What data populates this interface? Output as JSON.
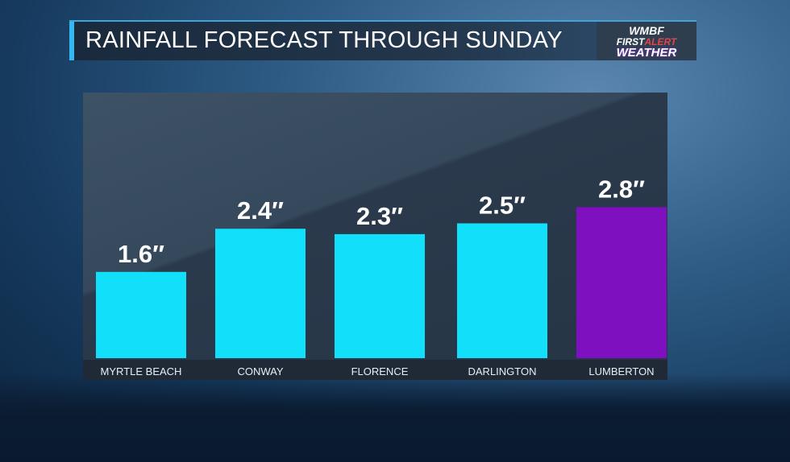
{
  "header": {
    "title": "RAINFALL FORECAST THROUGH SUNDAY",
    "logo": {
      "line1": "WMBF",
      "line2a": "FIRST",
      "line2b": "ALERT",
      "line3": "WEATHER"
    }
  },
  "colors": {
    "bar": "#12e0fb",
    "highlight_bar": "#7f10c0",
    "label_strip": "#1f2a36"
  },
  "chart_data": {
    "type": "bar",
    "title": "RAINFALL FORECAST THROUGH SUNDAY",
    "categories": [
      "MYRTLE BEACH",
      "CONWAY",
      "FLORENCE",
      "DARLINGTON",
      "LUMBERTON"
    ],
    "values": [
      1.6,
      2.4,
      2.3,
      2.5,
      2.8
    ],
    "data_labels": [
      "1.6″",
      "2.4″",
      "2.3″",
      "2.5″",
      "2.8″"
    ],
    "unit": "inches",
    "highlighted": "LUMBERTON",
    "xlabel": "",
    "ylabel": "",
    "ylim": [
      0,
      2.8
    ],
    "grid": false
  }
}
